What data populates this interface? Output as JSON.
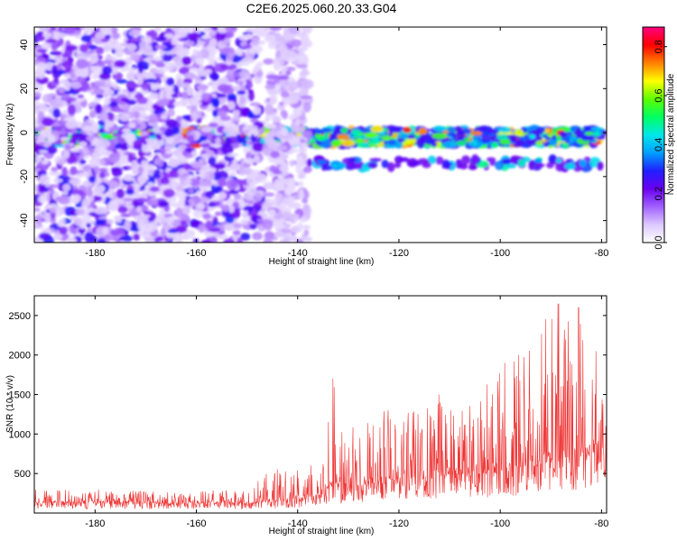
{
  "title": "C2E6.2025.060.20.33.G04",
  "chart_data": [
    {
      "type": "heatmap",
      "xlabel": "Height of straight line (km)",
      "ylabel": "Frequency (Hz)",
      "xlim": [
        -192,
        -79
      ],
      "ylim": [
        -50,
        48
      ],
      "xticks": [
        -180,
        -160,
        -140,
        -120,
        -100,
        -80
      ],
      "yticks": [
        -40,
        -20,
        0,
        20,
        40
      ],
      "colorbar": {
        "label": "Normalized spectral amplitude",
        "range": [
          0,
          0.88
        ],
        "ticks": [
          0.0,
          0.2,
          0.4,
          0.6,
          0.8
        ],
        "colors": [
          "#ffffff",
          "#dcc8ff",
          "#a060ff",
          "#6a00f0",
          "#2020ff",
          "#00a0ff",
          "#00e8e8",
          "#00ff60",
          "#60ff00",
          "#ffff00",
          "#ff8000",
          "#ff0000",
          "#ff0080"
        ]
      },
      "features": [
        {
          "x": [
            -192,
            -80
          ],
          "y": [
            -6,
            2
          ],
          "level": [
            0.25,
            0.8
          ]
        },
        {
          "x": [
            -192,
            -147
          ],
          "y": [
            -50,
            48
          ],
          "level": [
            0.05,
            0.3
          ]
        },
        {
          "x": [
            -146,
            -138
          ],
          "y": [
            -50,
            48
          ],
          "level": [
            0.05,
            0.15
          ]
        },
        {
          "x": [
            -138,
            -80
          ],
          "y": [
            -16,
            -12
          ],
          "level": [
            0.2,
            0.5
          ]
        }
      ]
    },
    {
      "type": "line",
      "xlabel": "Height of straight line (km)",
      "ylabel": "SNR (10 * v/v)",
      "xlim": [
        -192,
        -79
      ],
      "ylim": [
        0,
        2750
      ],
      "xticks": [
        -180,
        -160,
        -140,
        -120,
        -100,
        -80
      ],
      "yticks": [
        500,
        1000,
        1500,
        2000,
        2500
      ],
      "color": "#ee3333",
      "envelope": {
        "x": [
          -192,
          -180,
          -160,
          -150,
          -145,
          -140,
          -135,
          -133,
          -131,
          -128,
          -125,
          -120,
          -115,
          -110,
          -105,
          -100,
          -95,
          -92,
          -90,
          -85,
          -82,
          -79
        ],
        "low": [
          130,
          130,
          120,
          120,
          140,
          180,
          230,
          400,
          300,
          330,
          380,
          430,
          450,
          480,
          500,
          500,
          580,
          600,
          640,
          700,
          720,
          740
        ],
        "high": [
          320,
          300,
          270,
          320,
          560,
          600,
          650,
          1700,
          1150,
          1100,
          1350,
          1300,
          1600,
          1400,
          1500,
          1900,
          2000,
          2750,
          2650,
          2650,
          2000,
          1700
        ]
      },
      "peaks": [
        {
          "x": -133,
          "y": 1700
        },
        {
          "x": -114.5,
          "y": 1590
        },
        {
          "x": -112,
          "y": 1500
        },
        {
          "x": -99,
          "y": 1900
        },
        {
          "x": -96.3,
          "y": 2000
        },
        {
          "x": -92.5,
          "y": 2750
        },
        {
          "x": -88.5,
          "y": 2650
        },
        {
          "x": -84.5,
          "y": 2600
        },
        {
          "x": -81,
          "y": 2050
        }
      ]
    }
  ]
}
